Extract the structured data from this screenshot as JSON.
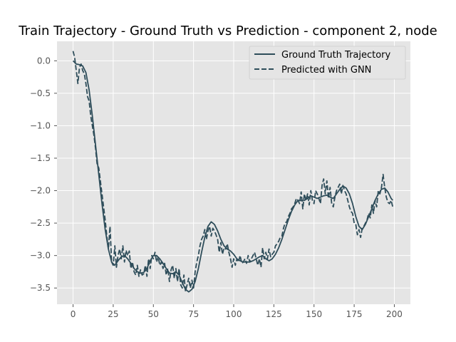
{
  "chart_data": {
    "type": "line",
    "title": "Train Trajectory - Ground Truth vs Prediction - component 2, node",
    "xlabel": "",
    "ylabel": "",
    "xlim": [
      -10,
      210
    ],
    "ylim": [
      -3.75,
      0.3
    ],
    "xticks": [
      0,
      25,
      50,
      75,
      100,
      125,
      150,
      175,
      200
    ],
    "yticks": [
      0.0,
      -0.5,
      -1.0,
      -1.5,
      -2.0,
      -2.5,
      -3.0,
      -3.5
    ],
    "xtick_labels": [
      "0",
      "25",
      "50",
      "75",
      "100",
      "125",
      "150",
      "175",
      "200"
    ],
    "ytick_labels": [
      "0.0",
      "−0.5",
      "−1.0",
      "−1.5",
      "−2.0",
      "−2.5",
      "−3.0",
      "−3.5"
    ],
    "grid": true,
    "legend_position": "top-right",
    "colors": {
      "background": "#e5e5e5",
      "grid": "#ffffff",
      "line": "#2e4d5a"
    },
    "series": [
      {
        "name": "Ground Truth Trajectory",
        "style": "solid",
        "points": [
          [
            0,
            0.0
          ],
          [
            2,
            -0.05
          ],
          [
            4,
            -0.06
          ],
          [
            6,
            -0.08
          ],
          [
            8,
            -0.18
          ],
          [
            10,
            -0.45
          ],
          [
            12,
            -0.85
          ],
          [
            14,
            -1.3
          ],
          [
            16,
            -1.75
          ],
          [
            18,
            -2.2
          ],
          [
            20,
            -2.6
          ],
          [
            22,
            -2.9
          ],
          [
            24,
            -3.1
          ],
          [
            26,
            -3.15
          ],
          [
            28,
            -3.08
          ],
          [
            30,
            -3.02
          ],
          [
            32,
            -3.0
          ],
          [
            34,
            -3.05
          ],
          [
            36,
            -3.12
          ],
          [
            38,
            -3.2
          ],
          [
            40,
            -3.25
          ],
          [
            42,
            -3.27
          ],
          [
            44,
            -3.26
          ],
          [
            46,
            -3.2
          ],
          [
            48,
            -3.08
          ],
          [
            50,
            -3.0
          ],
          [
            52,
            -3.0
          ],
          [
            54,
            -3.05
          ],
          [
            56,
            -3.12
          ],
          [
            58,
            -3.2
          ],
          [
            60,
            -3.27
          ],
          [
            62,
            -3.28
          ],
          [
            64,
            -3.25
          ],
          [
            66,
            -3.3
          ],
          [
            68,
            -3.42
          ],
          [
            70,
            -3.52
          ],
          [
            72,
            -3.56
          ],
          [
            74,
            -3.52
          ],
          [
            76,
            -3.4
          ],
          [
            78,
            -3.2
          ],
          [
            80,
            -2.95
          ],
          [
            82,
            -2.72
          ],
          [
            84,
            -2.55
          ],
          [
            86,
            -2.48
          ],
          [
            88,
            -2.52
          ],
          [
            90,
            -2.62
          ],
          [
            92,
            -2.75
          ],
          [
            94,
            -2.85
          ],
          [
            96,
            -2.9
          ],
          [
            98,
            -2.93
          ],
          [
            100,
            -2.98
          ],
          [
            102,
            -3.05
          ],
          [
            104,
            -3.08
          ],
          [
            106,
            -3.1
          ],
          [
            108,
            -3.1
          ],
          [
            110,
            -3.1
          ],
          [
            112,
            -3.08
          ],
          [
            114,
            -3.05
          ],
          [
            116,
            -3.02
          ],
          [
            118,
            -3.0
          ],
          [
            120,
            -3.05
          ],
          [
            122,
            -3.08
          ],
          [
            124,
            -3.05
          ],
          [
            126,
            -2.98
          ],
          [
            128,
            -2.88
          ],
          [
            130,
            -2.75
          ],
          [
            132,
            -2.6
          ],
          [
            134,
            -2.45
          ],
          [
            136,
            -2.32
          ],
          [
            138,
            -2.22
          ],
          [
            140,
            -2.15
          ],
          [
            142,
            -2.15
          ],
          [
            144,
            -2.15
          ],
          [
            146,
            -2.12
          ],
          [
            148,
            -2.08
          ],
          [
            150,
            -2.1
          ],
          [
            152,
            -2.12
          ],
          [
            154,
            -2.1
          ],
          [
            156,
            -2.08
          ],
          [
            158,
            -2.07
          ],
          [
            160,
            -2.1
          ],
          [
            162,
            -2.12
          ],
          [
            164,
            -2.05
          ],
          [
            166,
            -1.98
          ],
          [
            168,
            -1.93
          ],
          [
            170,
            -1.96
          ],
          [
            172,
            -2.05
          ],
          [
            174,
            -2.2
          ],
          [
            176,
            -2.4
          ],
          [
            178,
            -2.55
          ],
          [
            180,
            -2.6
          ],
          [
            182,
            -2.52
          ],
          [
            184,
            -2.4
          ],
          [
            186,
            -2.28
          ],
          [
            188,
            -2.15
          ],
          [
            190,
            -2.05
          ],
          [
            192,
            -1.98
          ],
          [
            194,
            -1.96
          ],
          [
            196,
            -2.02
          ],
          [
            198,
            -2.12
          ],
          [
            199,
            -2.15
          ]
        ]
      },
      {
        "name": "Predicted with GNN",
        "style": "dashed",
        "points": [
          [
            0,
            0.15
          ],
          [
            1,
            0.05
          ],
          [
            2,
            -0.15
          ],
          [
            3,
            -0.35
          ],
          [
            4,
            -0.1
          ],
          [
            5,
            -0.05
          ],
          [
            6,
            -0.15
          ],
          [
            7,
            -0.2
          ],
          [
            8,
            -0.35
          ],
          [
            9,
            -0.55
          ],
          [
            10,
            -0.62
          ],
          [
            11,
            -0.85
          ],
          [
            12,
            -1.0
          ],
          [
            13,
            -1.15
          ],
          [
            14,
            -1.35
          ],
          [
            15,
            -1.6
          ],
          [
            16,
            -1.65
          ],
          [
            17,
            -1.85
          ],
          [
            18,
            -2.05
          ],
          [
            19,
            -2.25
          ],
          [
            20,
            -2.45
          ],
          [
            21,
            -2.7
          ],
          [
            22,
            -2.9
          ],
          [
            23,
            -2.55
          ],
          [
            24,
            -3.1
          ],
          [
            25,
            -3.15
          ],
          [
            26,
            -2.85
          ],
          [
            27,
            -3.18
          ],
          [
            28,
            -3.0
          ],
          [
            29,
            -2.9
          ],
          [
            30,
            -3.05
          ],
          [
            31,
            -2.85
          ],
          [
            32,
            -3.1
          ],
          [
            33,
            -2.92
          ],
          [
            34,
            -3.0
          ],
          [
            35,
            -2.93
          ],
          [
            36,
            -3.2
          ],
          [
            37,
            -3.1
          ],
          [
            38,
            -3.25
          ],
          [
            39,
            -3.3
          ],
          [
            40,
            -3.15
          ],
          [
            41,
            -3.32
          ],
          [
            42,
            -3.22
          ],
          [
            43,
            -3.3
          ],
          [
            44,
            -3.28
          ],
          [
            45,
            -3.15
          ],
          [
            46,
            -3.32
          ],
          [
            47,
            -3.05
          ],
          [
            48,
            -3.2
          ],
          [
            49,
            -3.0
          ],
          [
            50,
            -3.05
          ],
          [
            51,
            -2.95
          ],
          [
            52,
            -3.1
          ],
          [
            53,
            -3.02
          ],
          [
            54,
            -3.15
          ],
          [
            55,
            -3.1
          ],
          [
            56,
            -3.2
          ],
          [
            57,
            -3.12
          ],
          [
            58,
            -3.3
          ],
          [
            59,
            -3.2
          ],
          [
            60,
            -3.4
          ],
          [
            61,
            -3.22
          ],
          [
            62,
            -3.15
          ],
          [
            63,
            -3.35
          ],
          [
            64,
            -3.2
          ],
          [
            65,
            -3.4
          ],
          [
            66,
            -3.2
          ],
          [
            67,
            -3.45
          ],
          [
            68,
            -3.5
          ],
          [
            69,
            -3.3
          ],
          [
            70,
            -3.55
          ],
          [
            71,
            -3.45
          ],
          [
            72,
            -3.35
          ],
          [
            73,
            -3.5
          ],
          [
            74,
            -3.38
          ],
          [
            75,
            -3.5
          ],
          [
            76,
            -3.25
          ],
          [
            77,
            -3.1
          ],
          [
            78,
            -3.0
          ],
          [
            79,
            -2.85
          ],
          [
            80,
            -2.75
          ],
          [
            81,
            -2.7
          ],
          [
            82,
            -2.6
          ],
          [
            83,
            -2.75
          ],
          [
            84,
            -2.62
          ],
          [
            85,
            -2.55
          ],
          [
            86,
            -2.7
          ],
          [
            87,
            -2.58
          ],
          [
            88,
            -2.62
          ],
          [
            89,
            -2.68
          ],
          [
            90,
            -2.75
          ],
          [
            91,
            -2.95
          ],
          [
            92,
            -2.8
          ],
          [
            93,
            -2.98
          ],
          [
            94,
            -2.88
          ],
          [
            95,
            -2.9
          ],
          [
            96,
            -2.82
          ],
          [
            97,
            -2.95
          ],
          [
            98,
            -3.05
          ],
          [
            99,
            -3.18
          ],
          [
            100,
            -3.05
          ],
          [
            101,
            -3.15
          ],
          [
            102,
            -3.05
          ],
          [
            103,
            -3.1
          ],
          [
            104,
            -3.0
          ],
          [
            105,
            -3.12
          ],
          [
            106,
            -3.1
          ],
          [
            107,
            -3.05
          ],
          [
            108,
            -3.12
          ],
          [
            109,
            -3.0
          ],
          [
            110,
            -3.1
          ],
          [
            111,
            -3.05
          ],
          [
            112,
            -3.0
          ],
          [
            113,
            -2.95
          ],
          [
            114,
            -3.05
          ],
          [
            115,
            -3.15
          ],
          [
            116,
            -3.05
          ],
          [
            117,
            -3.18
          ],
          [
            118,
            -2.88
          ],
          [
            119,
            -3.05
          ],
          [
            120,
            -2.95
          ],
          [
            121,
            -3.05
          ],
          [
            122,
            -2.9
          ],
          [
            123,
            -3.02
          ],
          [
            124,
            -2.98
          ],
          [
            125,
            -2.95
          ],
          [
            126,
            -2.85
          ],
          [
            127,
            -2.82
          ],
          [
            128,
            -2.78
          ],
          [
            129,
            -2.72
          ],
          [
            130,
            -2.7
          ],
          [
            131,
            -2.58
          ],
          [
            132,
            -2.5
          ],
          [
            133,
            -2.48
          ],
          [
            134,
            -2.4
          ],
          [
            135,
            -2.35
          ],
          [
            136,
            -2.28
          ],
          [
            137,
            -2.25
          ],
          [
            138,
            -2.2
          ],
          [
            139,
            -2.12
          ],
          [
            140,
            -2.15
          ],
          [
            141,
            -2.2
          ],
          [
            142,
            -2.02
          ],
          [
            143,
            -2.28
          ],
          [
            144,
            -2.05
          ],
          [
            145,
            -2.15
          ],
          [
            146,
            -2.05
          ],
          [
            147,
            -2.22
          ],
          [
            148,
            -2.0
          ],
          [
            149,
            -2.15
          ],
          [
            150,
            -2.2
          ],
          [
            151,
            -2.0
          ],
          [
            152,
            -2.05
          ],
          [
            153,
            -2.12
          ],
          [
            154,
            -2.2
          ],
          [
            155,
            -1.92
          ],
          [
            156,
            -1.82
          ],
          [
            157,
            -2.05
          ],
          [
            158,
            -1.85
          ],
          [
            159,
            -2.12
          ],
          [
            160,
            -1.95
          ],
          [
            161,
            -2.2
          ],
          [
            162,
            -2.25
          ],
          [
            163,
            -2.1
          ],
          [
            164,
            -2.0
          ],
          [
            165,
            -1.95
          ],
          [
            166,
            -1.9
          ],
          [
            167,
            -2.05
          ],
          [
            168,
            -1.92
          ],
          [
            169,
            -2.0
          ],
          [
            170,
            -2.05
          ],
          [
            171,
            -2.15
          ],
          [
            172,
            -2.25
          ],
          [
            173,
            -2.32
          ],
          [
            174,
            -2.35
          ],
          [
            175,
            -2.5
          ],
          [
            176,
            -2.52
          ],
          [
            177,
            -2.68
          ],
          [
            178,
            -2.6
          ],
          [
            179,
            -2.72
          ],
          [
            180,
            -2.58
          ],
          [
            181,
            -2.55
          ],
          [
            182,
            -2.5
          ],
          [
            183,
            -2.45
          ],
          [
            184,
            -2.35
          ],
          [
            185,
            -2.42
          ],
          [
            186,
            -2.22
          ],
          [
            187,
            -2.35
          ],
          [
            188,
            -2.15
          ],
          [
            189,
            -2.25
          ],
          [
            190,
            -2.0
          ],
          [
            191,
            -2.05
          ],
          [
            192,
            -1.95
          ],
          [
            193,
            -1.75
          ],
          [
            194,
            -1.95
          ],
          [
            195,
            -2.1
          ],
          [
            196,
            -2.18
          ],
          [
            197,
            -2.2
          ],
          [
            198,
            -2.15
          ],
          [
            199,
            -2.25
          ]
        ]
      }
    ]
  }
}
